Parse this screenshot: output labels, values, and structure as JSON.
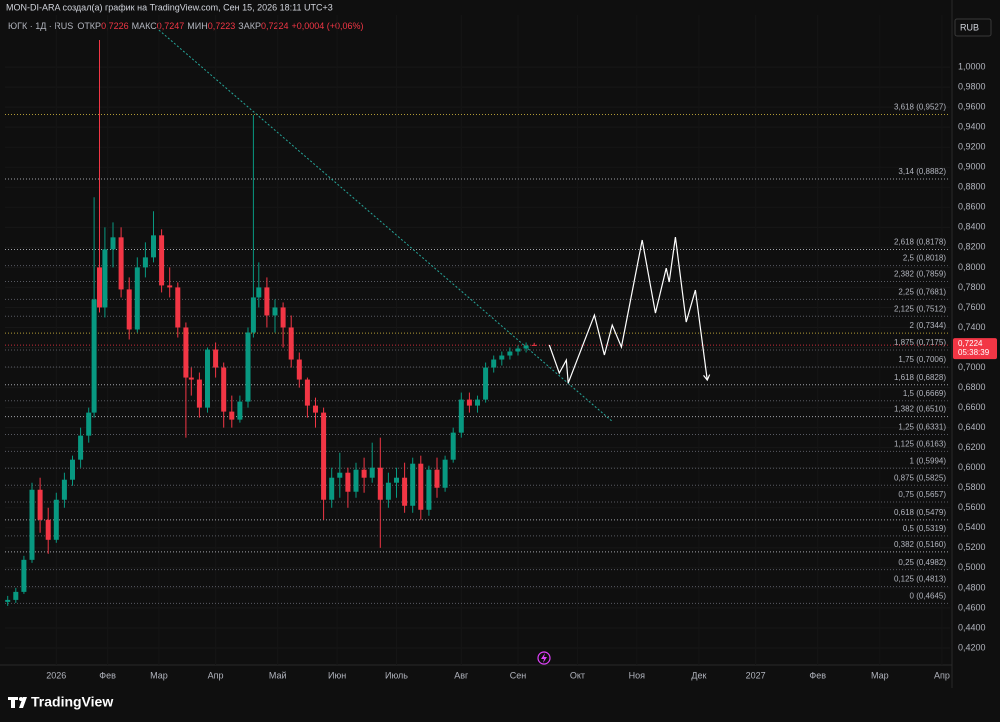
{
  "header": {
    "attribution": "MON-DI-ARA создал(а) график на TradingView.com, Сен 15, 2026 18:11 UTC+3"
  },
  "chart_data": {
    "type": "candlestick",
    "legend": {
      "symbol": "ЮГК · 1Д · RUS",
      "items": [
        {
          "label": "ОТКР",
          "value_label": "0,7226"
        },
        {
          "label": "МАКС",
          "value_label": "0,7247"
        },
        {
          "label": "МИН",
          "value_label": "0,7223"
        },
        {
          "label": "ЗАКР",
          "value_label": "0,7224"
        }
      ],
      "change": "+0,0004 (+0,06%)"
    },
    "currency": "RUB",
    "up_color": "#089981",
    "down_color": "#f23645",
    "x": [
      -18,
      -15,
      -12,
      -9,
      -6,
      -3,
      0,
      3,
      6,
      9,
      12,
      14,
      16,
      18,
      21,
      24,
      27,
      30,
      33,
      36,
      39,
      42,
      45,
      48,
      50,
      53,
      56,
      59,
      62,
      65,
      68,
      71,
      73,
      75,
      78,
      81,
      84,
      87,
      90,
      93,
      96,
      99,
      102,
      105,
      108,
      111,
      114,
      117,
      120,
      123,
      126,
      129,
      132,
      135,
      138,
      141,
      144,
      147,
      150,
      153,
      156,
      159,
      162,
      165,
      168,
      171,
      174,
      177
    ],
    "open": [
      0.466,
      0.468,
      0.476,
      0.508,
      0.578,
      0.548,
      0.528,
      0.568,
      0.588,
      0.608,
      0.632,
      0.655,
      0.8,
      0.76,
      0.818,
      0.83,
      0.778,
      0.738,
      0.8,
      0.81,
      0.832,
      0.782,
      0.78,
      0.74,
      0.69,
      0.688,
      0.66,
      0.718,
      0.7,
      0.656,
      0.648,
      0.666,
      0.735,
      0.77,
      0.78,
      0.752,
      0.76,
      0.74,
      0.708,
      0.688,
      0.662,
      0.655,
      0.568,
      0.59,
      0.595,
      0.576,
      0.598,
      0.59,
      0.6,
      0.568,
      0.585,
      0.59,
      0.562,
      0.604,
      0.558,
      0.598,
      0.58,
      0.608,
      0.635,
      0.668,
      0.662,
      0.668,
      0.7,
      0.708,
      0.712,
      0.716,
      0.719,
      0.7226
    ],
    "high": [
      0.472,
      0.48,
      0.512,
      0.585,
      0.59,
      0.56,
      0.575,
      0.595,
      0.612,
      0.64,
      0.66,
      0.87,
      1.027,
      0.84,
      0.845,
      0.84,
      0.79,
      0.81,
      0.825,
      0.856,
      0.838,
      0.8,
      0.785,
      0.745,
      0.7,
      0.695,
      0.72,
      0.725,
      0.705,
      0.672,
      0.672,
      0.74,
      0.952,
      0.805,
      0.79,
      0.768,
      0.765,
      0.752,
      0.715,
      0.69,
      0.67,
      0.66,
      0.6,
      0.615,
      0.6,
      0.605,
      0.61,
      0.625,
      0.63,
      0.595,
      0.6,
      0.605,
      0.61,
      0.612,
      0.602,
      0.61,
      0.612,
      0.64,
      0.675,
      0.675,
      0.672,
      0.705,
      0.712,
      0.716,
      0.72,
      0.722,
      0.725,
      0.7247
    ],
    "low": [
      0.462,
      0.465,
      0.474,
      0.505,
      0.535,
      0.514,
      0.525,
      0.56,
      0.582,
      0.6,
      0.625,
      0.65,
      0.755,
      0.75,
      0.8,
      0.77,
      0.728,
      0.735,
      0.79,
      0.805,
      0.775,
      0.77,
      0.73,
      0.63,
      0.672,
      0.65,
      0.655,
      0.69,
      0.64,
      0.64,
      0.645,
      0.66,
      0.73,
      0.76,
      0.74,
      0.735,
      0.72,
      0.7,
      0.68,
      0.65,
      0.64,
      0.548,
      0.56,
      0.57,
      0.56,
      0.57,
      0.575,
      0.585,
      0.52,
      0.56,
      0.57,
      0.555,
      0.555,
      0.548,
      0.552,
      0.57,
      0.576,
      0.605,
      0.63,
      0.655,
      0.655,
      0.665,
      0.695,
      0.702,
      0.708,
      0.712,
      0.715,
      0.7223
    ],
    "close": [
      0.468,
      0.476,
      0.508,
      0.578,
      0.548,
      0.528,
      0.568,
      0.588,
      0.608,
      0.632,
      0.655,
      0.768,
      0.76,
      0.818,
      0.83,
      0.778,
      0.738,
      0.8,
      0.81,
      0.832,
      0.782,
      0.78,
      0.74,
      0.69,
      0.688,
      0.66,
      0.718,
      0.7,
      0.656,
      0.648,
      0.666,
      0.735,
      0.77,
      0.78,
      0.752,
      0.76,
      0.74,
      0.708,
      0.688,
      0.662,
      0.655,
      0.568,
      0.59,
      0.595,
      0.576,
      0.598,
      0.59,
      0.6,
      0.568,
      0.585,
      0.59,
      0.562,
      0.604,
      0.558,
      0.598,
      0.58,
      0.608,
      0.635,
      0.668,
      0.662,
      0.668,
      0.7,
      0.708,
      0.712,
      0.716,
      0.719,
      0.722,
      0.7224
    ],
    "last_price": {
      "value": 0.7224,
      "label": "0,7224",
      "countdown": "05:38:39",
      "color": "#f23645"
    },
    "fib_levels": [
      {
        "label": "0 (0,4645)",
        "value": 0.4645,
        "color": "#787b86"
      },
      {
        "label": "0,125 (0,4813)",
        "value": 0.4813,
        "color": "#787b86"
      },
      {
        "label": "0,25 (0,4982)",
        "value": 0.4982,
        "color": "#787b86"
      },
      {
        "label": "0,382 (0,5160)",
        "value": 0.516,
        "color": "#e0e3eb"
      },
      {
        "label": "0,5 (0,5319)",
        "value": 0.5319,
        "color": "#787b86"
      },
      {
        "label": "0,618 (0,5479)",
        "value": 0.5479,
        "color": "#e0e3eb"
      },
      {
        "label": "0,75 (0,5657)",
        "value": 0.5657,
        "color": "#787b86"
      },
      {
        "label": "0,875 (0,5825)",
        "value": 0.5825,
        "color": "#787b86"
      },
      {
        "label": "1 (0,5994)",
        "value": 0.5994,
        "color": "#787b86"
      },
      {
        "label": "1,125 (0,6163)",
        "value": 0.6163,
        "color": "#787b86"
      },
      {
        "label": "1,25 (0,6331)",
        "value": 0.6331,
        "color": "#787b86"
      },
      {
        "label": "1,382 (0,6510)",
        "value": 0.651,
        "color": "#e0e3eb"
      },
      {
        "label": "1,5 (0,6669)",
        "value": 0.6669,
        "color": "#787b86"
      },
      {
        "label": "1,618 (0,6828)",
        "value": 0.6828,
        "color": "#e0e3eb"
      },
      {
        "label": "1,75 (0,7006)",
        "value": 0.7006,
        "color": "#787b86"
      },
      {
        "label": "1,875 (0,7175)",
        "value": 0.7175,
        "color": "#787b86"
      },
      {
        "label": "2 (0,7344)",
        "value": 0.7344,
        "color": "#f5d547"
      },
      {
        "label": "2,125 (0,7512)",
        "value": 0.7512,
        "color": "#787b86"
      },
      {
        "label": "2,25 (0,7681)",
        "value": 0.7681,
        "color": "#787b86"
      },
      {
        "label": "2,382 (0,7859)",
        "value": 0.7859,
        "color": "#787b86"
      },
      {
        "label": "2,5 (0,8018)",
        "value": 0.8018,
        "color": "#787b86"
      },
      {
        "label": "2,618 (0,8178)",
        "value": 0.8178,
        "color": "#e0e3eb"
      },
      {
        "label": "3,14 (0,8882)",
        "value": 0.8882,
        "color": "#e0e3eb"
      },
      {
        "label": "3,618 (0,9527)",
        "value": 0.9527,
        "color": "#f5d547"
      }
    ],
    "trendline": {
      "x": [
        38,
        206
      ],
      "y": [
        1.037,
        0.646
      ],
      "color": "#26a69a"
    },
    "projection": {
      "x": [
        182.6,
        186.3,
        188.9,
        189.6,
        199.3,
        203.0,
        205.9,
        209.3,
        217.0,
        221.9,
        225.9,
        227.0,
        229.3,
        233.3,
        236.7,
        241.1
      ],
      "y": [
        0.7225,
        0.6945,
        0.7075,
        0.6845,
        0.7524,
        0.7125,
        0.7424,
        0.7205,
        0.8273,
        0.7544,
        0.7993,
        0.7854,
        0.8303,
        0.7454,
        0.7774,
        0.6875
      ],
      "color": "#ffffff"
    },
    "xlim": [
      -19,
      331
    ],
    "ylim": [
      0.403,
      1.052
    ],
    "grid": true,
    "xticks": [
      {
        "value": 0,
        "label": "2026"
      },
      {
        "value": 19,
        "label": "Фев"
      },
      {
        "value": 38,
        "label": "Мар"
      },
      {
        "value": 59,
        "label": "Апр"
      },
      {
        "value": 82,
        "label": "Май"
      },
      {
        "value": 104,
        "label": "Июн"
      },
      {
        "value": 126,
        "label": "Июль"
      },
      {
        "value": 150,
        "label": "Авг"
      },
      {
        "value": 171,
        "label": "Сен"
      },
      {
        "value": 193,
        "label": "Окт"
      },
      {
        "value": 215,
        "label": "Ноя"
      },
      {
        "value": 238,
        "label": "Дек"
      },
      {
        "value": 259,
        "label": "2027"
      },
      {
        "value": 282,
        "label": "Фев"
      },
      {
        "value": 305,
        "label": "Мар"
      },
      {
        "value": 328,
        "label": "Апр"
      }
    ],
    "yticks": [
      {
        "value": 0.42,
        "label": "0,4200"
      },
      {
        "value": 0.44,
        "label": "0,4400"
      },
      {
        "value": 0.46,
        "label": "0,4600"
      },
      {
        "value": 0.48,
        "label": "0,4800"
      },
      {
        "value": 0.5,
        "label": "0,5000"
      },
      {
        "value": 0.52,
        "label": "0,5200"
      },
      {
        "value": 0.54,
        "label": "0,5400"
      },
      {
        "value": 0.56,
        "label": "0,5600"
      },
      {
        "value": 0.58,
        "label": "0,5800"
      },
      {
        "value": 0.6,
        "label": "0,6000"
      },
      {
        "value": 0.62,
        "label": "0,6200"
      },
      {
        "value": 0.64,
        "label": "0,6400"
      },
      {
        "value": 0.66,
        "label": "0,6600"
      },
      {
        "value": 0.68,
        "label": "0,6800"
      },
      {
        "value": 0.7,
        "label": "0,7000"
      },
      {
        "value": 0.72,
        "label": "0,7200"
      },
      {
        "value": 0.74,
        "label": "0,7400"
      },
      {
        "value": 0.76,
        "label": "0,7600"
      },
      {
        "value": 0.78,
        "label": "0,7800"
      },
      {
        "value": 0.8,
        "label": "0,8000"
      },
      {
        "value": 0.82,
        "label": "0,8200"
      },
      {
        "value": 0.84,
        "label": "0,8400"
      },
      {
        "value": 0.86,
        "label": "0,8600"
      },
      {
        "value": 0.88,
        "label": "0,8800"
      },
      {
        "value": 0.9,
        "label": "0,9000"
      },
      {
        "value": 0.92,
        "label": "0,9200"
      },
      {
        "value": 0.94,
        "label": "0,9400"
      },
      {
        "value": 0.96,
        "label": "0,9600"
      },
      {
        "value": 0.98,
        "label": "0,9800"
      },
      {
        "value": 1.0,
        "label": "1,0000"
      }
    ]
  },
  "footer": {
    "brand": "TradingView"
  }
}
